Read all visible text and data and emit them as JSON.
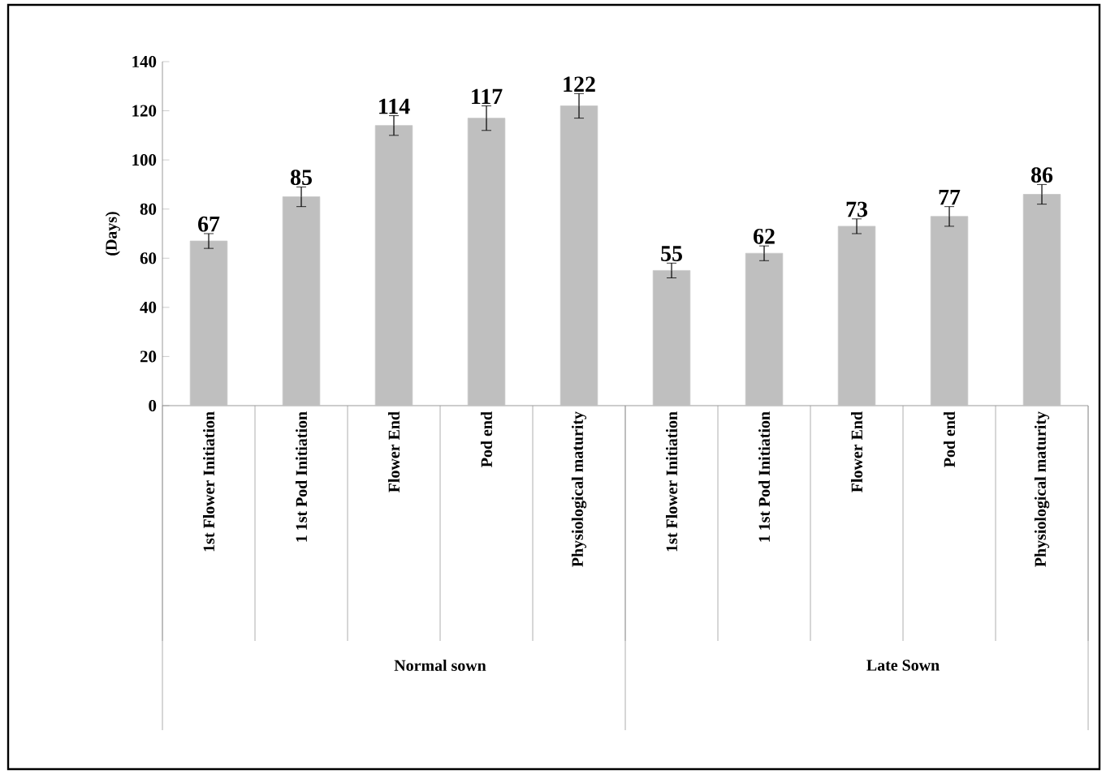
{
  "chart_data": {
    "type": "bar",
    "ylabel": "(Days)",
    "categories": [
      "1st Flower Initiation",
      "1 1st Pod Initiation",
      "Flower End",
      "Pod end",
      "Physiological maturity",
      "1st Flower Initiation",
      "1 1st Pod Initiation",
      "Flower End",
      "Pod end",
      "Physiological maturity"
    ],
    "values": [
      67,
      85,
      114,
      117,
      122,
      55,
      62,
      73,
      77,
      86
    ],
    "errors": [
      3,
      4,
      4,
      5,
      5,
      3,
      3,
      3,
      4,
      4
    ],
    "color": "#bfbfbf",
    "ylim": [
      0,
      140
    ],
    "yticks": [
      0,
      20,
      40,
      60,
      80,
      100,
      120,
      140
    ],
    "data_labels": true,
    "grid": false,
    "annotations": [
      "Normal sown",
      "Late Sown"
    ]
  }
}
